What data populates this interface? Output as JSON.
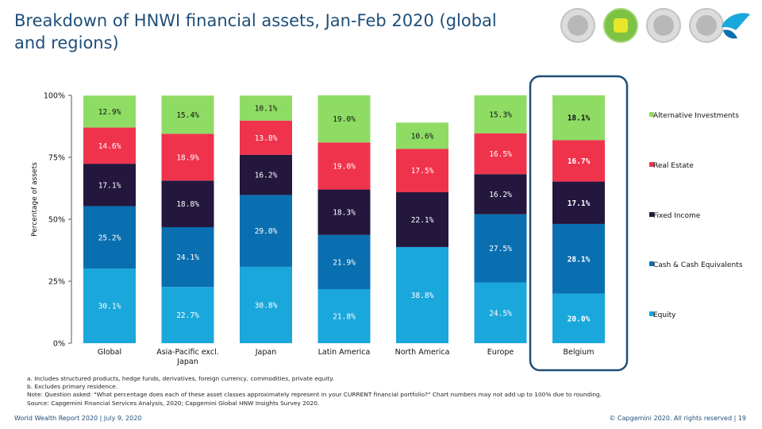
{
  "title": "Breakdown of HNWI financial assets, Jan-Feb 2020 (global and regions)",
  "badges": [
    "seal-icon-1",
    "map-icon-active",
    "seal-icon-2",
    "seal-icon-3"
  ],
  "chart_data": {
    "type": "bar",
    "stacked": true,
    "ylabel": "Percentage of assets",
    "ylim": [
      0,
      100
    ],
    "yticks": [
      "0%",
      "25%",
      "50%",
      "75%",
      "100%"
    ],
    "categories": [
      "Global",
      "Asia-Pacific excl. Japan",
      "Japan",
      "Latin America",
      "North America",
      "Europe",
      "Belgium"
    ],
    "highlighted_category": "Belgium",
    "series": [
      {
        "name": "Equity",
        "color": "#1aa7dc",
        "values": [
          30.1,
          22.7,
          30.8,
          21.8,
          38.8,
          24.5,
          20.0
        ],
        "labels": [
          "30.1%",
          "22.7%",
          "30.8%",
          "21.8%",
          "38.8%",
          "24.5%",
          "20.0%"
        ]
      },
      {
        "name": "Cash & Cash Equivalents",
        "color": "#0a6fb0",
        "values": [
          25.2,
          24.1,
          29.0,
          21.9,
          0,
          27.5,
          28.1
        ],
        "labels": [
          "25.2%",
          "24.1%",
          "29.0%",
          "21.9%",
          "",
          "27.5%",
          "28.1%"
        ]
      },
      {
        "name": "Fixed Income",
        "color": "#23173d",
        "values": [
          17.1,
          18.8,
          16.2,
          18.3,
          22.1,
          16.2,
          17.1
        ],
        "labels": [
          "17.1%",
          "18.8%",
          "16.2%",
          "18.3%",
          "22.1%",
          "16.2%",
          "17.1%"
        ]
      },
      {
        "name": "Real Estate",
        "color": "#f0334d",
        "values": [
          14.6,
          18.9,
          13.8,
          19.0,
          17.5,
          16.5,
          16.7
        ],
        "labels": [
          "14.6%",
          "18.9%",
          "13.8%",
          "19.0%",
          "17.5%",
          "16.5%",
          "16.7%"
        ]
      },
      {
        "name": "Alternative Investments",
        "color": "#8fdc65",
        "values": [
          12.9,
          15.4,
          10.1,
          19.0,
          10.6,
          15.3,
          18.1
        ],
        "labels": [
          "12.9%",
          "15.4%",
          "10.1%",
          "19.0%",
          "10.6%",
          "15.3%",
          "18.1%"
        ]
      }
    ],
    "legend_position": "right",
    "grid": false
  },
  "footnotes": [
    "a.  Includes structured products, hedge funds, derivatives, foreign currency, commodities, private equity.",
    "b.  Excludes primary residence.",
    "Note:     Question asked: \"What percentage does each of these asset classes approximately represent in your CURRENT financial portfolio?\" Chart numbers may not add up to 100% due to rounding.",
    "Source:  Capgemini Financial Services Analysis, 2020; Capgemini Global HNW Insights Survey 2020."
  ],
  "footer": {
    "left": "World Wealth Report 2020 | July 9, 2020",
    "right": "© Capgemini 2020. All rights reserved   |    19"
  }
}
